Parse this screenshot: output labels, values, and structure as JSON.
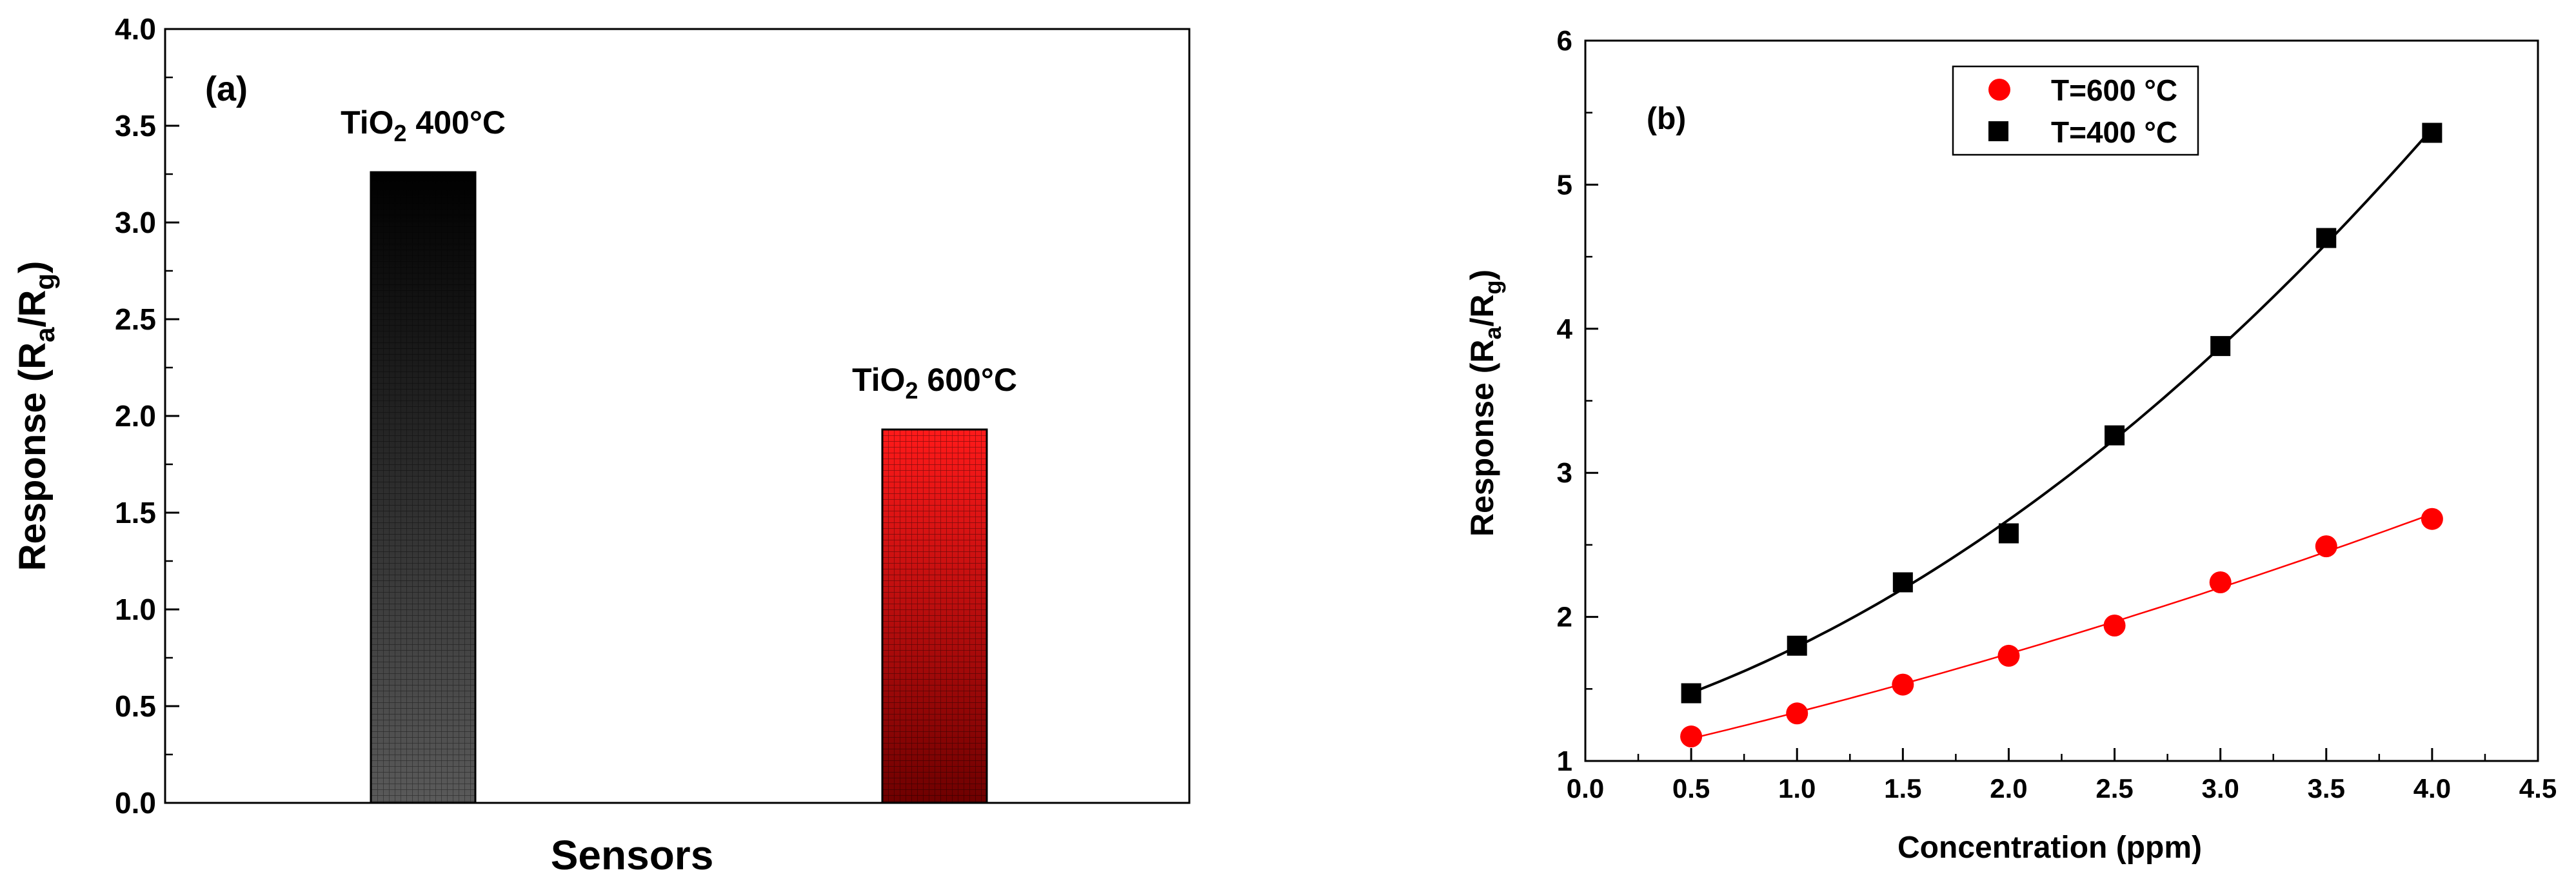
{
  "chart_data": [
    {
      "type": "bar",
      "panel_label": "(a)",
      "categories": [
        "TiO2 400°C",
        "TiO2 600°C"
      ],
      "bar_labels": [
        {
          "base": "TiO",
          "sub": "2",
          "rest": " 400°C"
        },
        {
          "base": "TiO",
          "sub": "2",
          "rest": " 600°C"
        }
      ],
      "values": [
        3.26,
        1.93
      ],
      "colors": [
        "#111111",
        "#e00000"
      ],
      "xlabel": "Sensors",
      "ylabel": {
        "base": "Response (R",
        "sub1": "a",
        "mid": "/R",
        "sub2": "g",
        "end": ")"
      },
      "ylim": [
        0,
        4.0
      ],
      "yticks": [
        "0.0",
        "0.5",
        "1.0",
        "1.5",
        "2.0",
        "2.5",
        "3.0",
        "3.5",
        "4.0"
      ],
      "ytick_values": [
        0,
        0.5,
        1.0,
        1.5,
        2.0,
        2.5,
        3.0,
        3.5,
        4.0
      ]
    },
    {
      "type": "scatter",
      "panel_label": "(b)",
      "xlabel": "Concentration (ppm)",
      "ylabel": {
        "base": "Response (R",
        "sub1": "a",
        "mid": "/R",
        "sub2": "g",
        "end": ")"
      },
      "xlim": [
        0,
        4.5
      ],
      "ylim": [
        1,
        6
      ],
      "xticks": [
        "0.0",
        "0.5",
        "1.0",
        "1.5",
        "2.0",
        "2.5",
        "3.0",
        "3.5",
        "4.0",
        "4.5"
      ],
      "xtick_values": [
        0,
        0.5,
        1.0,
        1.5,
        2.0,
        2.5,
        3.0,
        3.5,
        4.0,
        4.5
      ],
      "yticks": [
        "1",
        "2",
        "3",
        "4",
        "5",
        "6"
      ],
      "ytick_values": [
        1,
        2,
        3,
        4,
        5,
        6
      ],
      "legend_position": "top-center",
      "series": [
        {
          "name": "T=600 °C",
          "marker": "circle",
          "color": "#ff0000",
          "x": [
            0.5,
            1.0,
            1.5,
            2.0,
            2.5,
            3.0,
            3.5,
            4.0
          ],
          "y": [
            1.17,
            1.33,
            1.53,
            1.73,
            1.94,
            2.24,
            2.49,
            2.68
          ]
        },
        {
          "name": "T=400 °C",
          "marker": "square",
          "color": "#000000",
          "x": [
            0.5,
            1.0,
            1.5,
            2.0,
            2.5,
            3.0,
            3.5,
            4.0
          ],
          "y": [
            1.47,
            1.8,
            2.24,
            2.58,
            3.26,
            3.88,
            4.63,
            5.36
          ]
        }
      ]
    }
  ]
}
